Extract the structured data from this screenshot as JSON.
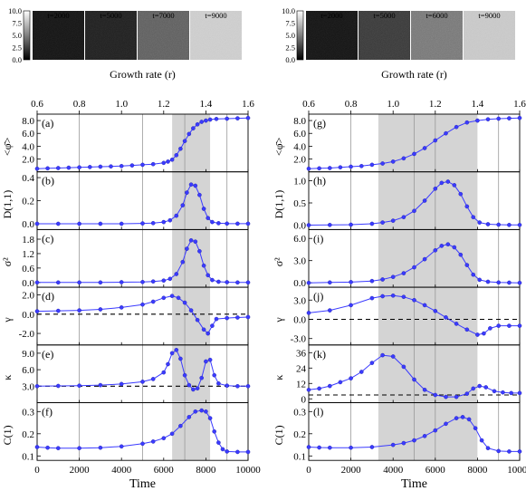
{
  "figure": {
    "x_title": "Time",
    "top_title": "Growth rate (r)",
    "cbar_ticks": [
      "10.0",
      "7.5",
      "5.0",
      "2.5",
      "0.0"
    ],
    "left_snapshots": [
      "t=2000",
      "t=5000",
      "t=7000",
      "t=9000"
    ],
    "right_snapshots": [
      "t=2000",
      "t=5000",
      "t=6000",
      "t=9000"
    ],
    "snapshot_levels_left": [
      0.06,
      0.1,
      0.35,
      0.82
    ],
    "snapshot_levels_right": [
      0.06,
      0.2,
      0.45,
      0.8
    ]
  },
  "chart_data": [
    {
      "type": "line",
      "column": "left",
      "x_axis": {
        "label": "Time",
        "range": [
          0,
          10000
        ],
        "ticks": [
          0,
          2000,
          4000,
          6000,
          8000,
          10000
        ]
      },
      "top_axis": {
        "label": "Growth rate (r)",
        "range": [
          0.6,
          1.6
        ],
        "ticks": [
          0.6,
          0.8,
          1.0,
          1.2,
          1.4,
          1.6
        ]
      },
      "vertical_lines_at_time": [
        2000,
        5000,
        7000,
        9000
      ],
      "shaded_time_range": [
        6400,
        8200
      ],
      "marker_color": "#3b3bff",
      "panels": [
        {
          "id": "a",
          "label": "(a)",
          "ylabel": "<φ̄>",
          "ylim": [
            0.0,
            9.0
          ],
          "yticks": [
            "2.0",
            "4.0",
            "6.0",
            "8.0"
          ],
          "ytick_values": [
            2.0,
            4.0,
            6.0,
            8.0
          ],
          "x": [
            0,
            500,
            1000,
            1500,
            2000,
            2500,
            3000,
            3500,
            4000,
            4500,
            5000,
            5500,
            6000,
            6200,
            6400,
            6600,
            6800,
            7000,
            7200,
            7400,
            7600,
            7800,
            8000,
            8200,
            8500,
            9000,
            9500,
            10000
          ],
          "y": [
            0.5,
            0.55,
            0.6,
            0.65,
            0.7,
            0.75,
            0.8,
            0.85,
            0.9,
            1.0,
            1.1,
            1.2,
            1.4,
            1.6,
            1.9,
            2.6,
            3.6,
            4.8,
            5.9,
            6.8,
            7.4,
            7.8,
            8.0,
            8.15,
            8.25,
            8.3,
            8.35,
            8.4
          ]
        },
        {
          "id": "b",
          "label": "(b)",
          "ylabel": "D(1,1)",
          "ylim": [
            -0.05,
            0.45
          ],
          "yticks": [
            "0.0",
            "0.2",
            "0.4"
          ],
          "ytick_values": [
            0.0,
            0.2,
            0.4
          ],
          "x": [
            0,
            1000,
            2000,
            3000,
            4000,
            5000,
            5500,
            6000,
            6300,
            6600,
            6900,
            7100,
            7300,
            7500,
            7700,
            7900,
            8100,
            8300,
            8600,
            9000,
            9500,
            10000
          ],
          "y": [
            0.0,
            0.0,
            0.0,
            0.0,
            0.0,
            0.003,
            0.006,
            0.015,
            0.03,
            0.07,
            0.16,
            0.27,
            0.34,
            0.33,
            0.25,
            0.13,
            0.05,
            0.015,
            0.005,
            0.002,
            0.001,
            0.001
          ]
        },
        {
          "id": "c",
          "label": "(c)",
          "ylabel": "σ²",
          "ylim": [
            -0.2,
            2.2
          ],
          "yticks": [
            "0.0",
            "0.6",
            "1.2",
            "1.8"
          ],
          "ytick_values": [
            0.0,
            0.6,
            1.2,
            1.8
          ],
          "x": [
            0,
            1000,
            2000,
            3000,
            4000,
            5000,
            5500,
            6000,
            6300,
            6600,
            6900,
            7100,
            7300,
            7500,
            7700,
            7900,
            8100,
            8300,
            8600,
            9000,
            9500,
            10000
          ],
          "y": [
            0.0,
            0.0,
            0.0,
            0.0,
            0.01,
            0.02,
            0.04,
            0.08,
            0.15,
            0.35,
            0.85,
            1.4,
            1.75,
            1.7,
            1.3,
            0.7,
            0.3,
            0.1,
            0.03,
            0.01,
            0.0,
            0.0
          ]
        },
        {
          "id": "d",
          "label": "(d)",
          "ylabel": "γ",
          "ylim": [
            -3.2,
            2.8
          ],
          "yticks": [
            "-2.0",
            "0.0",
            "2.0"
          ],
          "ytick_values": [
            -2.0,
            0.0,
            2.0
          ],
          "hline": 0.0,
          "x": [
            0,
            1000,
            2000,
            3000,
            4000,
            5000,
            5500,
            6000,
            6400,
            6700,
            7000,
            7300,
            7600,
            7900,
            8100,
            8300,
            8500,
            9000,
            9500,
            10000
          ],
          "y": [
            0.3,
            0.35,
            0.4,
            0.5,
            0.7,
            1.0,
            1.3,
            1.7,
            1.9,
            1.7,
            1.2,
            0.4,
            -0.6,
            -1.6,
            -2.0,
            -1.2,
            -0.5,
            -0.4,
            -0.35,
            -0.3
          ]
        },
        {
          "id": "e",
          "label": "(e)",
          "ylabel": "κ",
          "ylim": [
            0.0,
            10.5
          ],
          "yticks": [
            "3.0",
            "6.0",
            "9.0"
          ],
          "ytick_values": [
            3.0,
            6.0,
            9.0
          ],
          "hline": 3.0,
          "x": [
            0,
            1000,
            2000,
            3000,
            4000,
            5000,
            5500,
            6000,
            6200,
            6400,
            6600,
            6800,
            7000,
            7200,
            7400,
            7600,
            7800,
            8000,
            8200,
            8400,
            8600,
            9000,
            9500,
            10000
          ],
          "y": [
            3.0,
            3.05,
            3.1,
            3.2,
            3.4,
            3.8,
            4.3,
            5.5,
            7.0,
            9.0,
            9.6,
            8.0,
            5.0,
            3.2,
            2.4,
            2.6,
            4.5,
            7.5,
            7.8,
            5.0,
            3.5,
            3.1,
            3.0,
            3.0
          ]
        },
        {
          "id": "f",
          "label": "(f)",
          "ylabel": "C(1)",
          "ylim": [
            0.08,
            0.34
          ],
          "yticks": [
            "0.1",
            "0.2",
            "0.3"
          ],
          "ytick_values": [
            0.1,
            0.2,
            0.3
          ],
          "x": [
            0,
            500,
            1000,
            2000,
            3000,
            4000,
            5000,
            5500,
            6000,
            6400,
            6800,
            7200,
            7500,
            7800,
            8000,
            8200,
            8400,
            8600,
            8800,
            9000,
            9500,
            10000
          ],
          "y": [
            0.14,
            0.137,
            0.135,
            0.135,
            0.137,
            0.143,
            0.155,
            0.165,
            0.18,
            0.2,
            0.235,
            0.275,
            0.3,
            0.305,
            0.3,
            0.27,
            0.21,
            0.16,
            0.13,
            0.12,
            0.118,
            0.118
          ]
        }
      ]
    },
    {
      "type": "line",
      "column": "right",
      "x_axis": {
        "label": "Time",
        "range": [
          0,
          10000
        ],
        "ticks": [
          0,
          2000,
          4000,
          6000,
          8000,
          10000
        ]
      },
      "top_axis": {
        "label": "Growth rate (r)",
        "range": [
          0.6,
          1.6
        ],
        "ticks": [
          0.6,
          0.8,
          1.0,
          1.2,
          1.4,
          1.6
        ]
      },
      "vertical_lines_at_time": [
        2000,
        5000,
        6000,
        9000
      ],
      "shaded_time_range": [
        3300,
        8000
      ],
      "marker_color": "#3b3bff",
      "panels": [
        {
          "id": "g",
          "label": "(g)",
          "ylabel": "<φ̄>",
          "ylim": [
            0.0,
            9.0
          ],
          "yticks": [
            "2.0",
            "4.0",
            "6.0",
            "8.0"
          ],
          "ytick_values": [
            2.0,
            4.0,
            6.0,
            8.0
          ],
          "x": [
            0,
            500,
            1000,
            1500,
            2000,
            2500,
            3000,
            3500,
            4000,
            4500,
            5000,
            5500,
            6000,
            6500,
            7000,
            7500,
            8000,
            8500,
            9000,
            9500,
            10000
          ],
          "y": [
            0.5,
            0.55,
            0.6,
            0.7,
            0.8,
            0.9,
            1.1,
            1.3,
            1.6,
            2.1,
            2.8,
            3.7,
            4.9,
            6.0,
            7.0,
            7.7,
            8.0,
            8.2,
            8.3,
            8.35,
            8.4
          ]
        },
        {
          "id": "h",
          "label": "(h)",
          "ylabel": "D(1,1)",
          "ylim": [
            -0.1,
            1.2
          ],
          "yticks": [
            "0.0",
            "0.5",
            "1.0"
          ],
          "ytick_values": [
            0.0,
            0.5,
            1.0
          ],
          "x": [
            0,
            1000,
            2000,
            3000,
            3500,
            4000,
            4500,
            5000,
            5500,
            6000,
            6300,
            6600,
            6900,
            7200,
            7500,
            7800,
            8100,
            8500,
            9000,
            9500,
            10000
          ],
          "y": [
            0.0,
            0.005,
            0.01,
            0.03,
            0.06,
            0.1,
            0.18,
            0.32,
            0.55,
            0.82,
            0.95,
            0.98,
            0.9,
            0.7,
            0.42,
            0.18,
            0.06,
            0.02,
            0.01,
            0.005,
            0.005
          ]
        },
        {
          "id": "i",
          "label": "(i)",
          "ylabel": "σ²",
          "ylim": [
            -0.6,
            7.2
          ],
          "yticks": [
            "0.0",
            "3.0",
            "6.0"
          ],
          "ytick_values": [
            0.0,
            3.0,
            6.0
          ],
          "x": [
            0,
            1000,
            2000,
            3000,
            3500,
            4000,
            4500,
            5000,
            5500,
            6000,
            6300,
            6600,
            6900,
            7200,
            7500,
            7800,
            8100,
            8500,
            9000,
            9500,
            10000
          ],
          "y": [
            0.0,
            0.05,
            0.1,
            0.25,
            0.45,
            0.8,
            1.3,
            2.1,
            3.2,
            4.4,
            5.0,
            5.2,
            4.8,
            3.8,
            2.4,
            1.1,
            0.4,
            0.15,
            0.05,
            0.02,
            0.0
          ]
        },
        {
          "id": "j",
          "label": "(j)",
          "ylabel": "γ",
          "ylim": [
            -4.0,
            5.0
          ],
          "yticks": [
            "-3.0",
            "0.0",
            "3.0"
          ],
          "ytick_values": [
            -3.0,
            0.0,
            3.0
          ],
          "hline": 0.0,
          "x": [
            0,
            1000,
            2000,
            3000,
            3500,
            4000,
            4500,
            5000,
            5500,
            6000,
            6500,
            7000,
            7500,
            8000,
            8300,
            8600,
            9000,
            9500,
            10000
          ],
          "y": [
            1.0,
            1.4,
            2.2,
            3.3,
            3.6,
            3.7,
            3.5,
            3.0,
            2.2,
            1.3,
            0.3,
            -0.7,
            -1.6,
            -2.4,
            -2.2,
            -1.4,
            -1.0,
            -1.0,
            -1.0
          ]
        },
        {
          "id": "k",
          "label": "(k)",
          "ylabel": "κ",
          "ylim": [
            -3.0,
            42.0
          ],
          "yticks": [
            "0",
            "12",
            "24",
            "36"
          ],
          "ytick_values": [
            0,
            12,
            24,
            36
          ],
          "hline": 3.0,
          "x": [
            0,
            500,
            1000,
            1500,
            2000,
            2500,
            3000,
            3500,
            4000,
            4500,
            5000,
            5500,
            6000,
            6500,
            7000,
            7500,
            7800,
            8100,
            8400,
            8800,
            9200,
            9600,
            10000
          ],
          "y": [
            7,
            8,
            10,
            13,
            16,
            21,
            28,
            34,
            33,
            25,
            15,
            7,
            3,
            1.5,
            1.5,
            4,
            8,
            10,
            9,
            6,
            5,
            4.5,
            4.5
          ]
        },
        {
          "id": "l",
          "label": "(l)",
          "ylabel": "C(1)",
          "ylim": [
            0.08,
            0.34
          ],
          "yticks": [
            "0.1",
            "0.2",
            "0.3"
          ],
          "ytick_values": [
            0.1,
            0.2,
            0.3
          ],
          "x": [
            0,
            500,
            1000,
            2000,
            3000,
            4000,
            4500,
            5000,
            5500,
            6000,
            6500,
            7000,
            7300,
            7600,
            7900,
            8200,
            8500,
            9000,
            9500,
            10000
          ],
          "y": [
            0.14,
            0.138,
            0.137,
            0.137,
            0.14,
            0.15,
            0.158,
            0.17,
            0.19,
            0.215,
            0.245,
            0.27,
            0.275,
            0.265,
            0.225,
            0.17,
            0.135,
            0.122,
            0.12,
            0.12
          ]
        }
      ]
    }
  ]
}
